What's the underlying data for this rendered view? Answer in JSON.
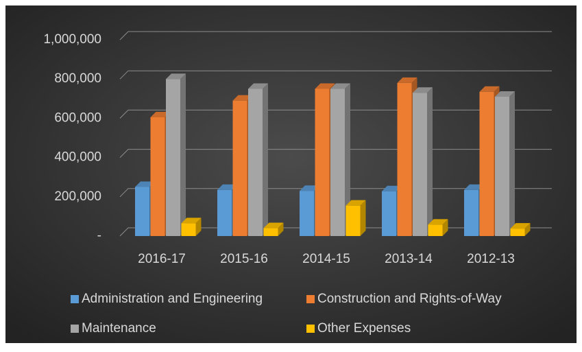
{
  "chart_data": {
    "type": "bar3d",
    "categories": [
      "2016-17",
      "2015-16",
      "2014-15",
      "2013-14",
      "2012-13"
    ],
    "series": [
      {
        "name": "Administration and Engineering",
        "color": "#5b9bd5",
        "values": [
          250000,
          235000,
          230000,
          228000,
          235000
        ]
      },
      {
        "name": "Construction and Rights-of-Way",
        "color": "#ed7d31",
        "values": [
          605000,
          690000,
          750000,
          780000,
          735000
        ]
      },
      {
        "name": "Maintenance",
        "color": "#a5a5a5",
        "values": [
          800000,
          750000,
          750000,
          730000,
          710000
        ]
      },
      {
        "name": "Other Expenses",
        "color": "#ffc000",
        "values": [
          65000,
          40000,
          155000,
          58000,
          38000
        ]
      }
    ],
    "ylim": [
      0,
      1000000
    ],
    "yticks": [
      {
        "value": 0,
        "label": "-"
      },
      {
        "value": 200000,
        "label": "200,000"
      },
      {
        "value": 400000,
        "label": "400,000"
      },
      {
        "value": 600000,
        "label": "600,000"
      },
      {
        "value": 800000,
        "label": "800,000"
      },
      {
        "value": 1000000,
        "label": "1,000,000"
      }
    ],
    "grid": true,
    "legend": "bottom"
  }
}
